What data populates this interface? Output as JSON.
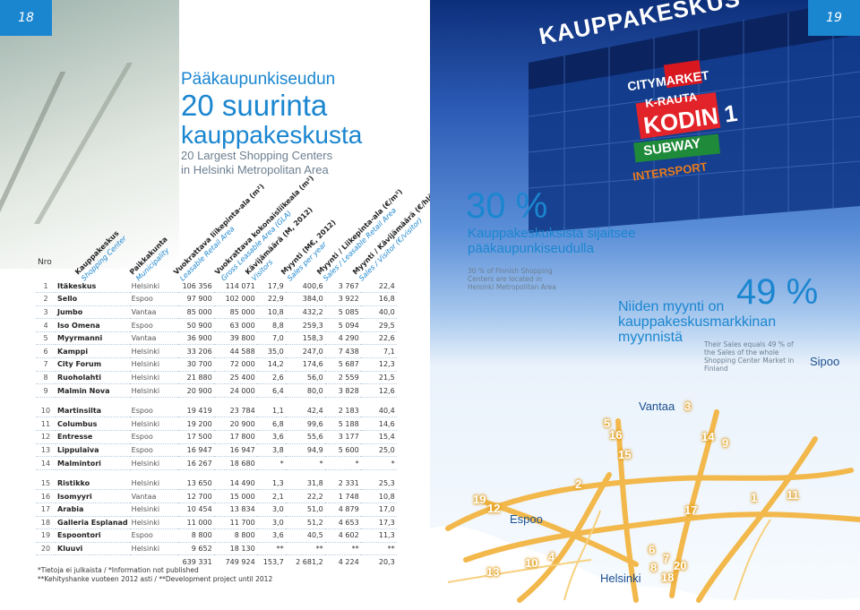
{
  "page_numbers": {
    "left": "18",
    "right": "19"
  },
  "title": {
    "line1": "Pääkaupunkiseudun",
    "line2": "20 suurinta",
    "line3": "kauppakeskusta"
  },
  "subtitle": {
    "line1": "20 Largest Shopping Centers",
    "line2": "in Helsinki Metropolitan Area"
  },
  "table": {
    "nro_label": "Nro",
    "headers": [
      {
        "fi": "Kauppakeskus",
        "en": "Shopping Center"
      },
      {
        "fi": "Paikkakunta",
        "en": "Municipality"
      },
      {
        "fi": "Vuokrattava liikepinta-ala (m²)",
        "en": "Leasable Retail Area"
      },
      {
        "fi": "Vuokrattava kokonaisliikeala (m²)",
        "en": "Gross Leasable Area (GLA)"
      },
      {
        "fi": "Kävijämäärä (M, 2012)",
        "en": "Visitors"
      },
      {
        "fi": "Myynti (M€, 2012)",
        "en": "Sales per year"
      },
      {
        "fi": "Myynti / Liikepinta-ala (€/m²)",
        "en": "Sales / Leasable Retail Area"
      },
      {
        "fi": "Myynti / Kävijämäärä (€/hlö)",
        "en": "Sales / Visitor (€/visitor)"
      }
    ],
    "rows": [
      [
        "1",
        "Itäkeskus",
        "Helsinki",
        "106 356",
        "114 071",
        "17,9",
        "400,6",
        "3 767",
        "22,4"
      ],
      [
        "2",
        "Sello",
        "Espoo",
        "97 900",
        "102 000",
        "22,9",
        "384,0",
        "3 922",
        "16,8"
      ],
      [
        "3",
        "Jumbo",
        "Vantaa",
        "85 000",
        "85 000",
        "10,8",
        "432,2",
        "5 085",
        "40,0"
      ],
      [
        "4",
        "Iso Omena",
        "Espoo",
        "50 900",
        "63 000",
        "8,8",
        "259,3",
        "5 094",
        "29,5"
      ],
      [
        "5",
        "Myyrmanni",
        "Vantaa",
        "36 900",
        "39 800",
        "7,0",
        "158,3",
        "4 290",
        "22,6"
      ],
      [
        "6",
        "Kamppi",
        "Helsinki",
        "33 206",
        "44 588",
        "35,0",
        "247,0",
        "7 438",
        "7,1"
      ],
      [
        "7",
        "City Forum",
        "Helsinki",
        "30 700",
        "72 000",
        "14,2",
        "174,6",
        "5 687",
        "12,3"
      ],
      [
        "8",
        "Ruoholahti",
        "Helsinki",
        "21 880",
        "25 400",
        "2,6",
        "56,0",
        "2 559",
        "21,5"
      ],
      [
        "9",
        "Malmin Nova",
        "Helsinki",
        "20 900",
        "24 000",
        "6,4",
        "80,0",
        "3 828",
        "12,6"
      ],
      [
        "10",
        "Martinsilta",
        "Espoo",
        "19 419",
        "23 784",
        "1,1",
        "42,4",
        "2 183",
        "40,4"
      ],
      [
        "11",
        "Columbus",
        "Helsinki",
        "19 200",
        "20 900",
        "6,8",
        "99,6",
        "5 188",
        "14,6"
      ],
      [
        "12",
        "Entresse",
        "Espoo",
        "17 500",
        "17 800",
        "3,6",
        "55,6",
        "3 177",
        "15,4"
      ],
      [
        "13",
        "Lippulaiva",
        "Espoo",
        "16 947",
        "16 947",
        "3,8",
        "94,9",
        "5 600",
        "25,0"
      ],
      [
        "14",
        "Malmintori",
        "Helsinki",
        "16 267",
        "18 680",
        "*",
        "*",
        "*",
        "*"
      ],
      [
        "15",
        "Ristikko",
        "Helsinki",
        "13 650",
        "14 490",
        "1,3",
        "31,8",
        "2 331",
        "25,3"
      ],
      [
        "16",
        "Isomyyri",
        "Vantaa",
        "12 700",
        "15 000",
        "2,1",
        "22,2",
        "1 748",
        "10,8"
      ],
      [
        "17",
        "Arabia",
        "Helsinki",
        "10 454",
        "13 834",
        "3,0",
        "51,0",
        "4 879",
        "17,0"
      ],
      [
        "18",
        "Galleria Esplanad",
        "Helsinki",
        "11 000",
        "11 700",
        "3,0",
        "51,2",
        "4 653",
        "17,3"
      ],
      [
        "19",
        "Espoontori",
        "Espoo",
        "8 800",
        "8 800",
        "3,6",
        "40,5",
        "4 602",
        "11,3"
      ],
      [
        "20",
        "Kluuvi",
        "Helsinki",
        "9 652",
        "18 130",
        "**",
        "**",
        "**",
        "**"
      ]
    ],
    "totals": [
      "639 331",
      "749 924",
      "153,7",
      "2 681,2",
      "4 224",
      "20,3"
    ]
  },
  "notes": {
    "line1": "*Tietoja ei julkaista / *Information not published",
    "line2": "**Kehityshanke vuoteen 2012 asti / **Development project until 2012"
  },
  "building": {
    "sign_main": "KAUPPAKESKUS",
    "signs": [
      "CITYMARKET",
      "K-RAUTA",
      "KODIN 1",
      "SUBWAY",
      "INTERSPORT"
    ]
  },
  "stat30": {
    "value": "30 %",
    "heading_line1": "Kauppakeskuksista sijaitsee",
    "heading_line2": "pääkaupunkiseudulla",
    "en_text": "30 % of Finnish Shopping Centers are located in Helsinki Metropolitan Area"
  },
  "stat49": {
    "value": "49 %",
    "heading_line1": "Niiden myynti on",
    "heading_line2": "kauppakeskusmarkkinan",
    "heading_line3": "myynnistä",
    "en_text": "Their Sales equals 49 % of the Sales of the whole Shopping Center Market in Finland"
  },
  "map": {
    "labels": {
      "vantaa": "Vantaa",
      "sipoo": "Sipoo",
      "espoo": "Espoo",
      "helsinki": "Helsinki"
    },
    "numbers": [
      "1",
      "2",
      "3",
      "4",
      "5",
      "6",
      "7",
      "8",
      "9",
      "10",
      "11",
      "12",
      "13",
      "14",
      "15",
      "16",
      "17",
      "18",
      "19",
      "20"
    ],
    "colors": {
      "road": "#f2b84b",
      "land": "#f4f8fc",
      "sea": "#ffffff"
    }
  }
}
